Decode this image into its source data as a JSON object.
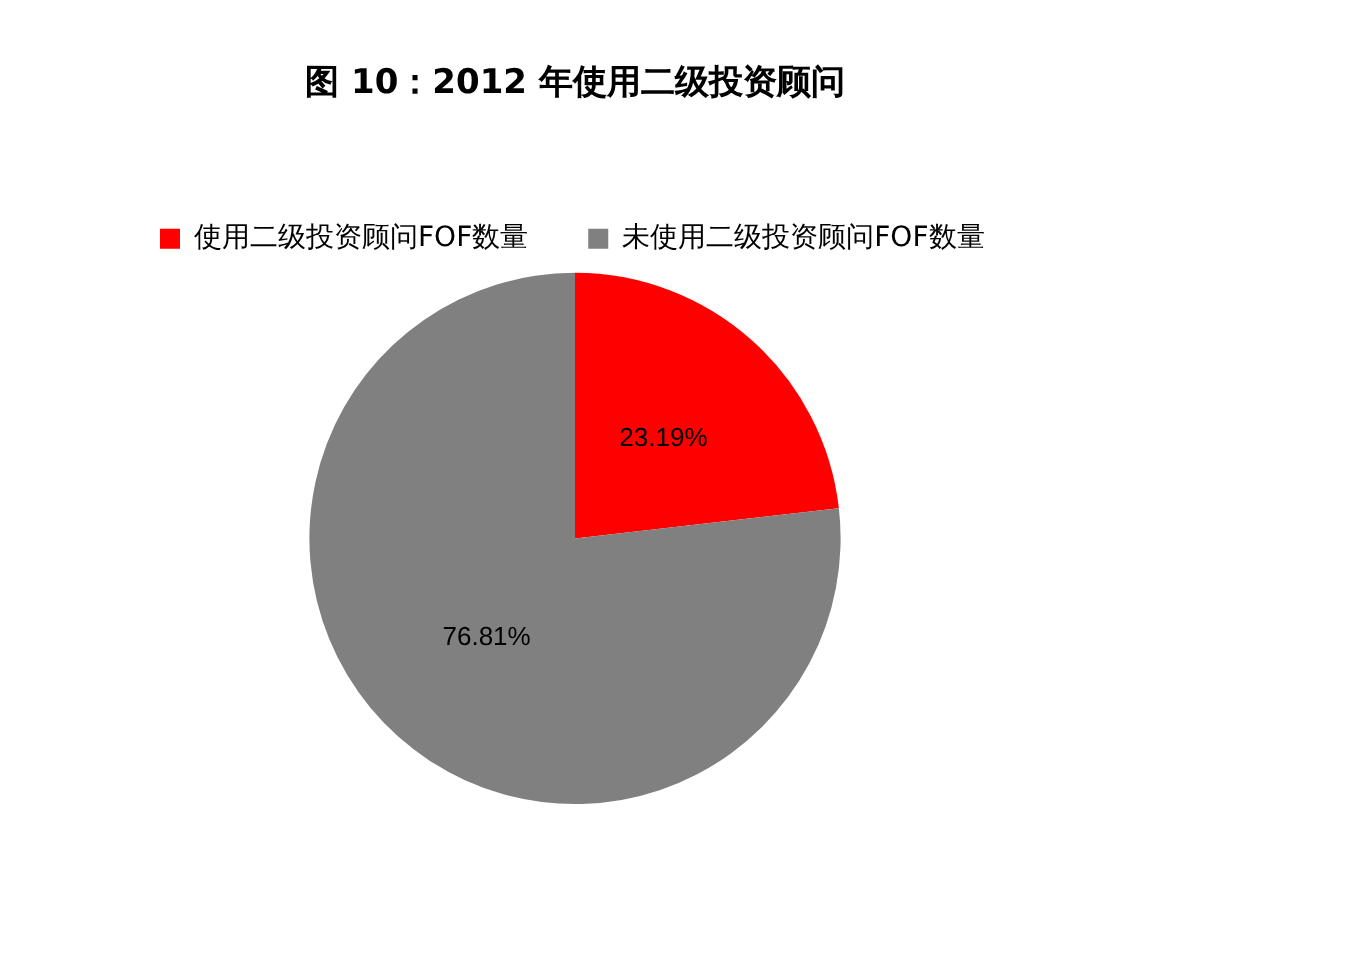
{
  "chart_data": {
    "type": "pie",
    "title": "图 10：2012 年使用二级投资顾问",
    "categories": [
      "使用二级投资顾问FOF数量",
      "未使用二级投资顾问FOF数量"
    ],
    "values": [
      23.19,
      76.81
    ],
    "colors": [
      "#ff0000",
      "#808080"
    ],
    "value_labels": [
      "23.19%",
      "76.81%"
    ],
    "legend": "top left"
  }
}
